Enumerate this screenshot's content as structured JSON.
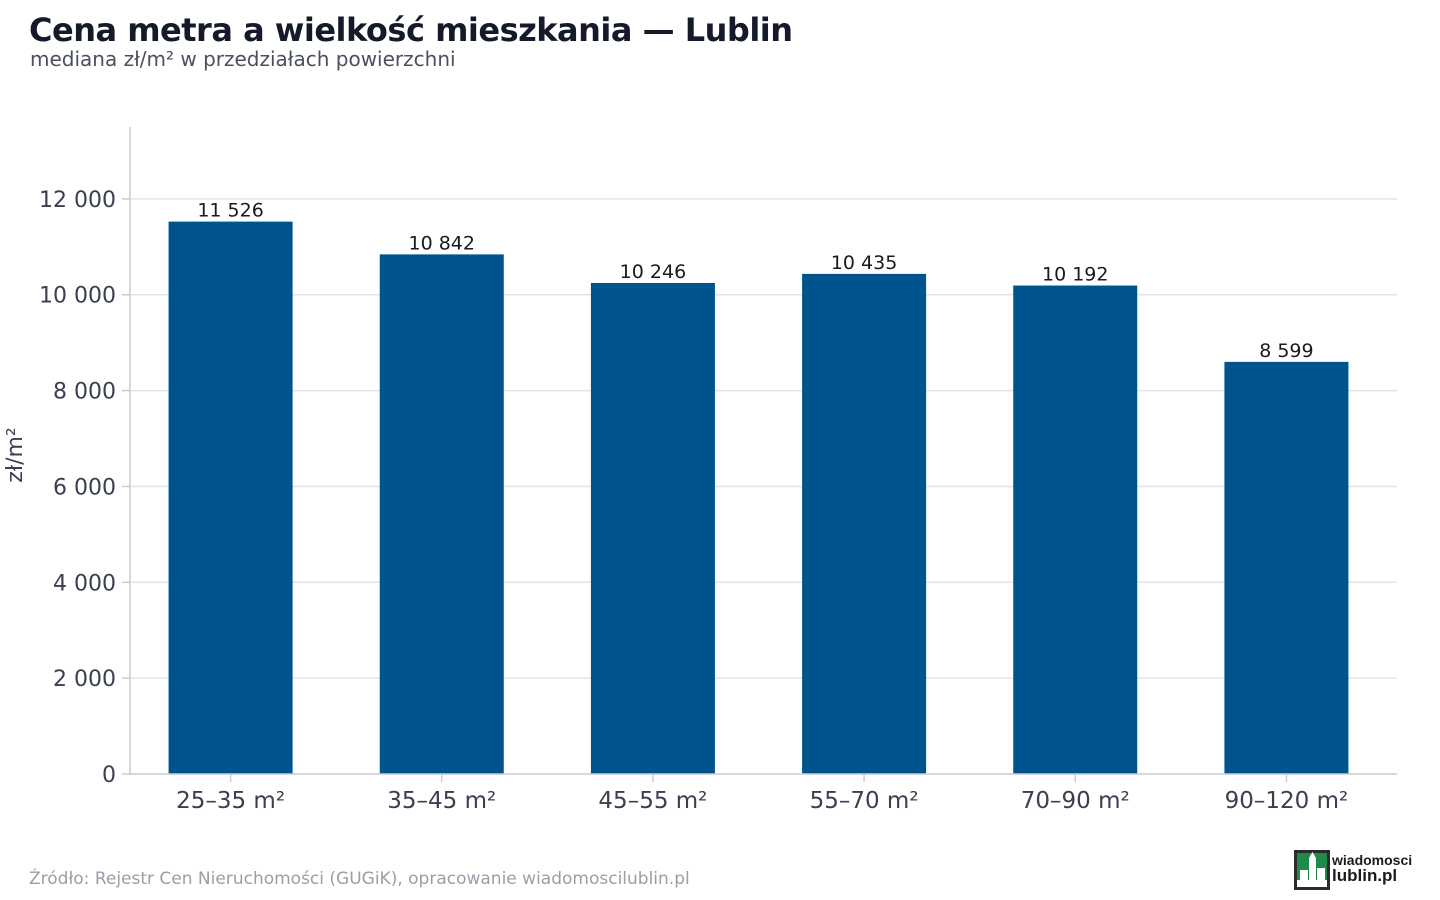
{
  "header": {
    "title": "Cena metra a wielkość mieszkania — Lublin",
    "subtitle": "mediana zł/m² w przedziałach powierzchni"
  },
  "footer": {
    "source": "Źródło: Rejestr Cen Nieruchomości (GUGiK), opracowanie wiadomoscilublin.pl",
    "logo_line1": "wiadomosci",
    "logo_line2": "lublin.pl"
  },
  "colors": {
    "bar": "#00548e",
    "grid": "#e2e4e8",
    "axis": "#c8ccd2",
    "tick_text": "#3a4050",
    "label_text": "#1a1a1a",
    "logo_green": "#1f8a4c"
  },
  "chart_data": {
    "type": "bar",
    "title": "Cena metra a wielkość mieszkania — Lublin",
    "subtitle": "mediana zł/m² w przedziałach powierzchni",
    "xlabel": "",
    "ylabel": "zł/m²",
    "ylim": [
      0,
      13500
    ],
    "yticks": [
      0,
      2000,
      4000,
      6000,
      8000,
      10000,
      12000
    ],
    "ytick_labels": [
      "0",
      "2 000",
      "4 000",
      "6 000",
      "8 000",
      "10 000",
      "12 000"
    ],
    "categories": [
      "25–35 m²",
      "35–45 m²",
      "45–55 m²",
      "55–70 m²",
      "70–90 m²",
      "90–120 m²"
    ],
    "values": [
      11526,
      10842,
      10246,
      10435,
      10192,
      8599
    ],
    "value_labels": [
      "11 526",
      "10 842",
      "10 246",
      "10 435",
      "10 192",
      "8 599"
    ],
    "grid": "horizontal",
    "legend": "none"
  }
}
